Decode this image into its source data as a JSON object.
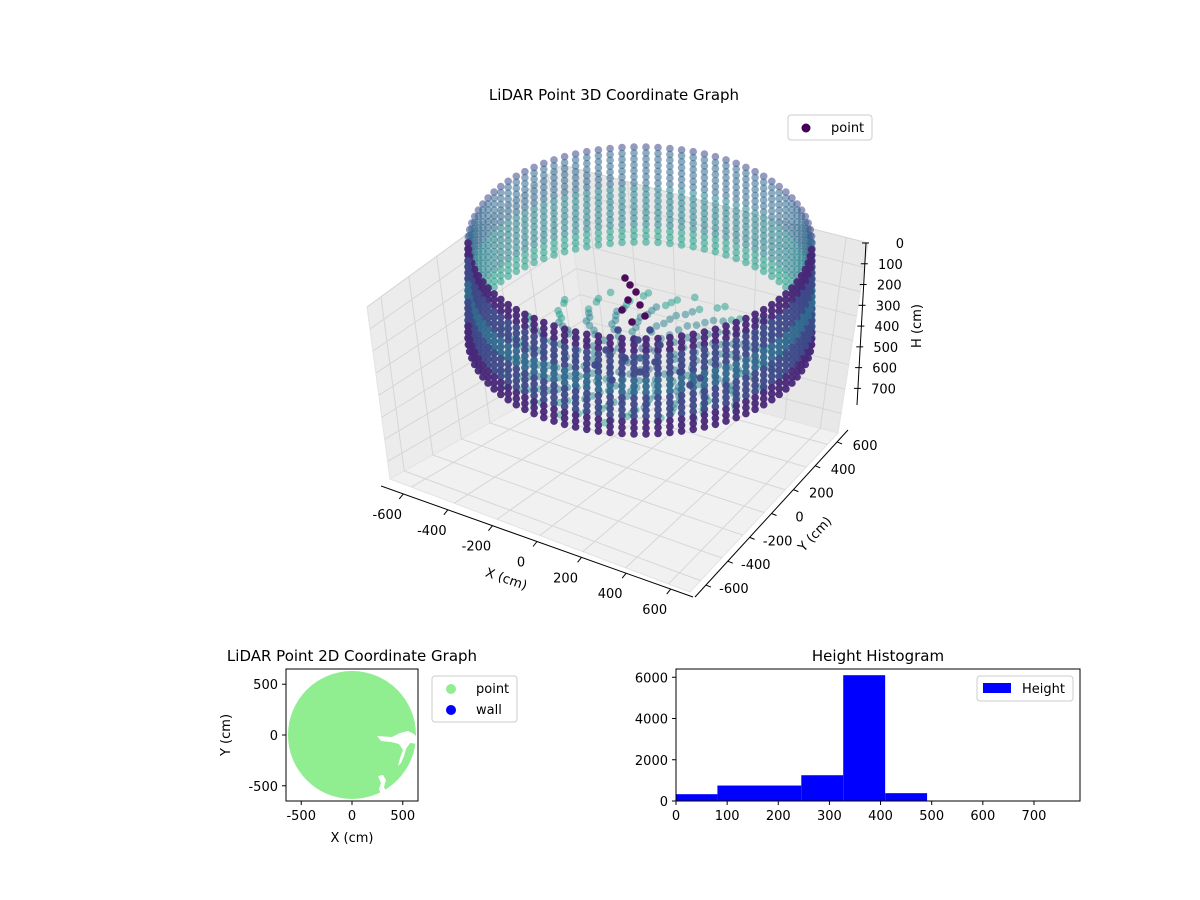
{
  "chart_data": [
    {
      "type": "scatter",
      "title": "LiDAR Point 3D Coordinate Graph",
      "xlabel": "X (cm)",
      "ylabel": "Y (cm)",
      "zlabel": "H (cm)",
      "xlim": [
        -700,
        700
      ],
      "ylim": [
        -700,
        700
      ],
      "zlim": [
        780,
        0
      ],
      "x_ticks": [
        -600,
        -400,
        -200,
        0,
        200,
        400,
        600
      ],
      "y_ticks": [
        -600,
        -400,
        -200,
        0,
        200,
        400,
        600
      ],
      "z_ticks": [
        0,
        100,
        200,
        300,
        400,
        500,
        600,
        700
      ],
      "colormap": "viridis",
      "legend": [
        "point"
      ],
      "legend_position": "top-right",
      "grid": true,
      "series": [
        {
          "name": "point",
          "shape": "circular wall around origin with vertical columns",
          "wall_radius": 660,
          "wall_height_range": [
            40,
            720
          ],
          "color_by_height": true
        }
      ]
    },
    {
      "type": "scatter",
      "title": "LiDAR Point 2D Coordinate Graph",
      "xlabel": "X (cm)",
      "ylabel": "Y (cm)",
      "xlim": [
        -650,
        650
      ],
      "ylim": [
        -650,
        650
      ],
      "x_ticks": [
        -500,
        0,
        500
      ],
      "y_ticks": [
        -500,
        0,
        500
      ],
      "legend_position": "outside-right",
      "series": [
        {
          "name": "point",
          "color": "#90ee90",
          "region": "disk",
          "radius": 640
        },
        {
          "name": "wall",
          "color": "#0000ff"
        }
      ]
    },
    {
      "type": "bar",
      "title": "Height Histogram",
      "xlim": [
        0,
        790
      ],
      "ylim": [
        0,
        6400
      ],
      "x_ticks": [
        0,
        100,
        200,
        300,
        400,
        500,
        600,
        700
      ],
      "y_ticks": [
        0,
        2000,
        4000,
        6000
      ],
      "legend_position": "top-right",
      "color": "#0000ff",
      "series": [
        {
          "name": "Height",
          "bins": [
            {
              "start": 0,
              "end": 81,
              "value": 330
            },
            {
              "start": 81,
              "end": 245,
              "value": 750
            },
            {
              "start": 245,
              "end": 327,
              "value": 1250
            },
            {
              "start": 327,
              "end": 409,
              "value": 6100
            },
            {
              "start": 409,
              "end": 491,
              "value": 380
            },
            {
              "start": 491,
              "end": 790,
              "value": 0
            }
          ]
        }
      ]
    }
  ]
}
